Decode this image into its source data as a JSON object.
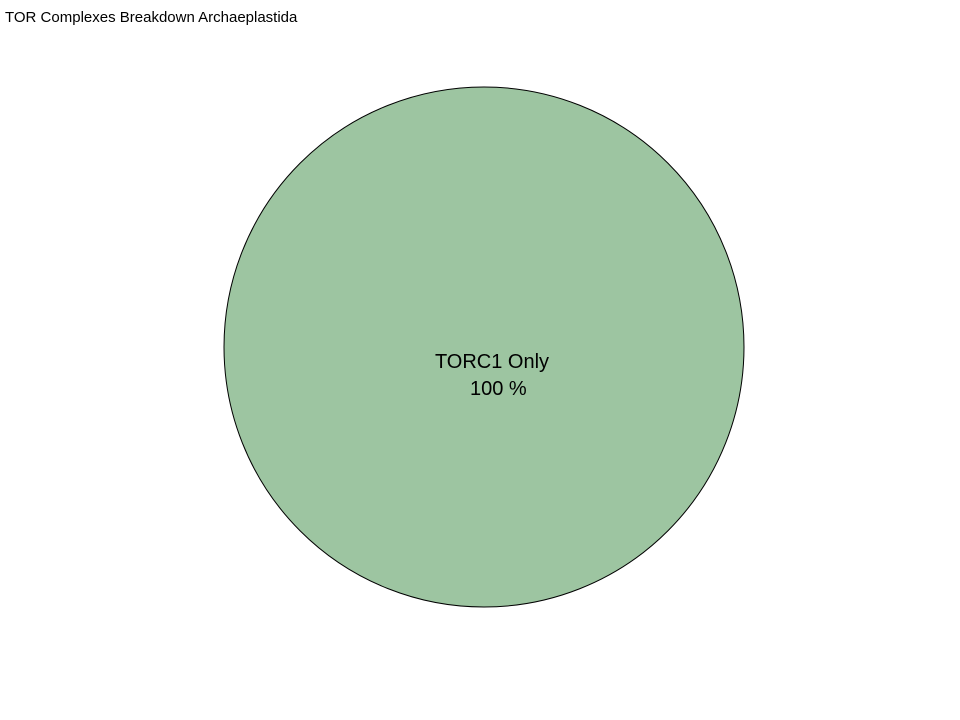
{
  "chart_data": {
    "type": "pie",
    "title": "TOR Complexes Breakdown Archaeplastida",
    "categories": [
      "TORC1 Only"
    ],
    "values": [
      100
    ],
    "slice_labels": [
      {
        "name": "TORC1 Only",
        "percent": "100 %"
      }
    ],
    "colors": [
      "#9dc5a1"
    ],
    "outline_color": "#000000",
    "legend": "none"
  }
}
